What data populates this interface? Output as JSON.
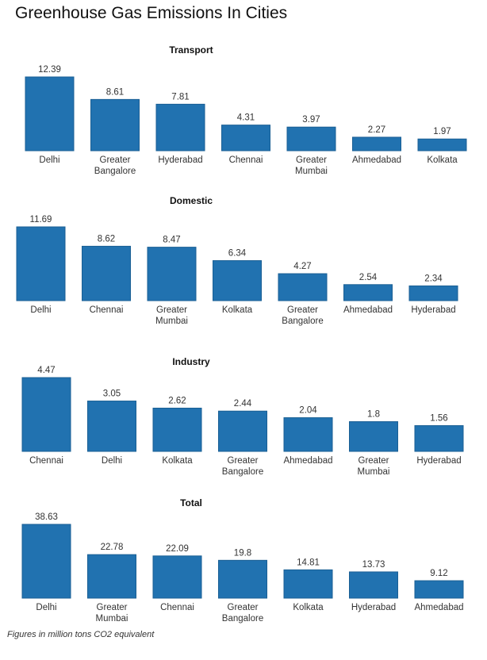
{
  "page": {
    "title": "Greenhouse Gas Emissions In Cities",
    "footnote": "Figures in million tons CO2 equivalent"
  },
  "colors": {
    "bar": "#2172b0"
  },
  "chart_data": [
    {
      "type": "bar",
      "title": "Transport",
      "categories": [
        "Delhi",
        "Greater Bangalore",
        "Hyderabad",
        "Chennai",
        "Greater Mumbai",
        "Ahmedabad",
        "Kolkata"
      ],
      "values": [
        12.39,
        8.61,
        7.81,
        4.31,
        3.97,
        2.27,
        1.97
      ],
      "value_labels": [
        "12.39",
        "8.61",
        "7.81",
        "4.31",
        "3.97",
        "2.27",
        "1.97"
      ],
      "xlabel": "",
      "ylabel": "",
      "ylim": [
        0,
        12.39
      ]
    },
    {
      "type": "bar",
      "title": "Domestic",
      "categories": [
        "Delhi",
        "Chennai",
        "Greater Mumbai",
        "Kolkata",
        "Greater Bangalore",
        "Ahmedabad",
        "Hyderabad"
      ],
      "values": [
        11.69,
        8.62,
        8.47,
        6.34,
        4.27,
        2.54,
        2.34
      ],
      "value_labels": [
        "11.69",
        "8.62",
        "8.47",
        "6.34",
        "4.27",
        "2.54",
        "2.34"
      ],
      "xlabel": "",
      "ylabel": "",
      "ylim": [
        0,
        11.69
      ]
    },
    {
      "type": "bar",
      "title": "Industry",
      "categories": [
        "Chennai",
        "Delhi",
        "Kolkata",
        "Greater Bangalore",
        "Ahmedabad",
        "Greater Mumbai",
        "Hyderabad"
      ],
      "values": [
        4.47,
        3.05,
        2.62,
        2.44,
        2.04,
        1.8,
        1.56
      ],
      "value_labels": [
        "4.47",
        "3.05",
        "2.62",
        "2.44",
        "2.04",
        "1.8",
        "1.56"
      ],
      "xlabel": "",
      "ylabel": "",
      "ylim": [
        0,
        4.47
      ]
    },
    {
      "type": "bar",
      "title": "Total",
      "categories": [
        "Delhi",
        "Greater Mumbai",
        "Chennai",
        "Greater Bangalore",
        "Kolkata",
        "Hyderabad",
        "Ahmedabad"
      ],
      "values": [
        38.63,
        22.78,
        22.09,
        19.8,
        14.81,
        13.73,
        9.12
      ],
      "value_labels": [
        "38.63",
        "22.78",
        "22.09",
        "19.8",
        "14.81",
        "13.73",
        "9.12"
      ],
      "xlabel": "",
      "ylabel": "",
      "ylim": [
        0,
        38.63
      ]
    }
  ]
}
